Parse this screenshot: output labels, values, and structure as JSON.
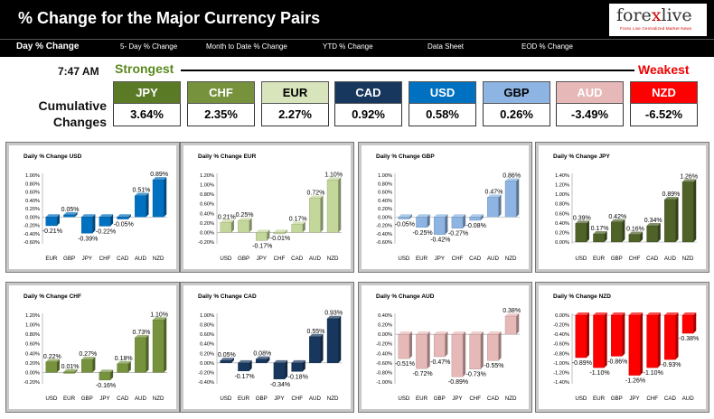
{
  "header": {
    "title": "% Change for the Major Currency Pairs",
    "logo": {
      "text_a": "fore",
      "text_x": "x",
      "text_b": "live",
      "tagline": "Forex Live Centralized Market News"
    }
  },
  "tabs": [
    {
      "label": "Day % Change",
      "active": true
    },
    {
      "label": "5- Day % Change",
      "active": false
    },
    {
      "label": "Month to Date % Change",
      "active": false
    },
    {
      "label": "YTD % Change",
      "active": false
    },
    {
      "label": "Data Sheet",
      "active": false
    },
    {
      "label": "EOD % Change",
      "active": false
    }
  ],
  "time": "7:47 AM",
  "strongest_label": "Strongest",
  "weakest_label": "Weakest",
  "cumulative_label_1": "Cumulative",
  "cumulative_label_2": "Changes",
  "cumulative": [
    {
      "currency": "JPY",
      "value": "3.64%",
      "color": "#5b7a25",
      "text": "#ffffff"
    },
    {
      "currency": "CHF",
      "value": "2.35%",
      "color": "#76923c",
      "text": "#ffffff"
    },
    {
      "currency": "EUR",
      "value": "2.27%",
      "color": "#d8e4bc",
      "text": "#000000"
    },
    {
      "currency": "CAD",
      "value": "0.92%",
      "color": "#17375e",
      "text": "#ffffff"
    },
    {
      "currency": "USD",
      "value": "0.58%",
      "color": "#0070c0",
      "text": "#ffffff"
    },
    {
      "currency": "GBP",
      "value": "0.26%",
      "color": "#8db4e2",
      "text": "#000000"
    },
    {
      "currency": "AUD",
      "value": "-3.49%",
      "color": "#e6b8b7",
      "text": "#ffffff"
    },
    {
      "currency": "NZD",
      "value": "-6.52%",
      "color": "#ff0000",
      "text": "#ffffff"
    }
  ],
  "chart_data": [
    {
      "type": "bar",
      "title": "Daily % Change USD",
      "color": "#0070c0",
      "categories": [
        "EUR",
        "GBP",
        "JPY",
        "CHF",
        "CAD",
        "AUD",
        "NZD"
      ],
      "values": [
        -0.21,
        0.05,
        -0.39,
        -0.22,
        -0.05,
        0.51,
        0.89
      ],
      "labels": [
        "-0.21%",
        "0.05%",
        "-0.39%",
        "-0.22%",
        "-0.05%",
        "0.51%",
        "0.89%"
      ],
      "yticks": [
        1.0,
        0.8,
        0.6,
        0.4,
        0.2,
        0.0,
        -0.2,
        -0.4,
        -0.6
      ],
      "yticklabels": [
        "1.00%",
        "0.80%",
        "0.60%",
        "0.40%",
        "0.20%",
        "0.00%",
        "-0.20%",
        "-0.40%",
        "-0.60%"
      ],
      "ylim": [
        -0.6,
        1.0
      ]
    },
    {
      "type": "bar",
      "title": "Daily % Change EUR",
      "color": "#c4d79b",
      "categories": [
        "USD",
        "GBP",
        "JPY",
        "CHF",
        "CAD",
        "AUD",
        "NZD"
      ],
      "values": [
        0.21,
        0.25,
        -0.17,
        -0.01,
        0.17,
        0.72,
        1.1
      ],
      "labels": [
        "0.21%",
        "0.25%",
        "-0.17%",
        "-0.01%",
        "0.17%",
        "0.72%",
        "1.10%"
      ],
      "yticks": [
        1.2,
        1.0,
        0.8,
        0.6,
        0.4,
        0.2,
        0.0,
        -0.2
      ],
      "yticklabels": [
        "1.20%",
        "1.00%",
        "0.80%",
        "0.60%",
        "0.40%",
        "0.20%",
        "0.00%",
        "-0.20%"
      ],
      "ylim": [
        -0.2,
        1.2
      ]
    },
    {
      "type": "bar",
      "title": "Daily % Change GBP",
      "color": "#8db4e2",
      "categories": [
        "USD",
        "EUR",
        "JPY",
        "CHF",
        "CAD",
        "AUD",
        "NZD"
      ],
      "values": [
        -0.05,
        -0.25,
        -0.42,
        -0.27,
        -0.08,
        0.47,
        0.86
      ],
      "labels": [
        "-0.05%",
        "-0.25%",
        "-0.42%",
        "-0.27%",
        "-0.08%",
        "0.47%",
        "0.86%"
      ],
      "yticks": [
        1.0,
        0.8,
        0.6,
        0.4,
        0.2,
        0.0,
        -0.2,
        -0.4,
        -0.6
      ],
      "yticklabels": [
        "1.00%",
        "0.80%",
        "0.60%",
        "0.40%",
        "0.20%",
        "0.00%",
        "-0.20%",
        "-0.40%",
        "-0.60%"
      ],
      "ylim": [
        -0.6,
        1.0
      ]
    },
    {
      "type": "bar",
      "title": "Daily % Change JPY",
      "color": "#4f6228",
      "categories": [
        "USD",
        "EUR",
        "GBP",
        "CHF",
        "CAD",
        "AUD",
        "NZD"
      ],
      "values": [
        0.39,
        0.17,
        0.42,
        0.16,
        0.34,
        0.89,
        1.26
      ],
      "labels": [
        "0.39%",
        "0.17%",
        "0.42%",
        "0.16%",
        "0.34%",
        "0.89%",
        "1.26%"
      ],
      "yticks": [
        1.4,
        1.2,
        1.0,
        0.8,
        0.6,
        0.4,
        0.2,
        0.0
      ],
      "yticklabels": [
        "1.40%",
        "1.20%",
        "1.00%",
        "0.80%",
        "0.60%",
        "0.40%",
        "0.20%",
        "0.00%"
      ],
      "ylim": [
        0.0,
        1.4
      ]
    },
    {
      "type": "bar",
      "title": "Daily % Change CHF",
      "color": "#76923c",
      "categories": [
        "USD",
        "EUR",
        "GBP",
        "JPY",
        "CAD",
        "AUD",
        "NZD"
      ],
      "values": [
        0.22,
        0.01,
        0.27,
        -0.16,
        0.18,
        0.73,
        1.1
      ],
      "labels": [
        "0.22%",
        "0.01%",
        "0.27%",
        "-0.16%",
        "0.18%",
        "0.73%",
        "1.10%"
      ],
      "yticks": [
        1.2,
        1.0,
        0.8,
        0.6,
        0.4,
        0.2,
        0.0,
        -0.2
      ],
      "yticklabels": [
        "1.20%",
        "1.00%",
        "0.80%",
        "0.60%",
        "0.40%",
        "0.20%",
        "0.00%",
        "-0.20%"
      ],
      "ylim": [
        -0.2,
        1.2
      ]
    },
    {
      "type": "bar",
      "title": "Daily % Change CAD",
      "color": "#17375e",
      "categories": [
        "USD",
        "EUR",
        "GBP",
        "JPY",
        "CHF",
        "AUD",
        "NZD"
      ],
      "values": [
        0.05,
        -0.17,
        0.08,
        -0.34,
        -0.18,
        0.55,
        0.93
      ],
      "labels": [
        "0.05%",
        "-0.17%",
        "0.08%",
        "-0.34%",
        "-0.18%",
        "0.55%",
        "0.93%"
      ],
      "yticks": [
        1.0,
        0.8,
        0.6,
        0.4,
        0.2,
        0.0,
        -0.2,
        -0.4
      ],
      "yticklabels": [
        "1.00%",
        "0.80%",
        "0.60%",
        "0.40%",
        "0.20%",
        "0.00%",
        "-0.20%",
        "-0.40%"
      ],
      "ylim": [
        -0.4,
        1.0
      ]
    },
    {
      "type": "bar",
      "title": "Daily % Change AUD",
      "color": "#e6b8b7",
      "categories": [
        "USD",
        "EUR",
        "GBP",
        "JPY",
        "CHF",
        "CAD",
        "NZD"
      ],
      "values": [
        -0.51,
        -0.72,
        -0.47,
        -0.89,
        -0.73,
        -0.55,
        0.38
      ],
      "labels": [
        "-0.51%",
        "-0.72%",
        "-0.47%",
        "-0.89%",
        "-0.73%",
        "-0.55%",
        "0.38%"
      ],
      "yticks": [
        0.4,
        0.2,
        0.0,
        -0.2,
        -0.4,
        -0.6,
        -0.8,
        -1.0
      ],
      "yticklabels": [
        "0.40%",
        "0.20%",
        "0.00%",
        "-0.20%",
        "-0.40%",
        "-0.60%",
        "-0.80%",
        "-1.00%"
      ],
      "ylim": [
        -1.0,
        0.4
      ]
    },
    {
      "type": "bar",
      "title": "Daily % Change NZD",
      "color": "#ff0000",
      "categories": [
        "USD",
        "EUR",
        "GBP",
        "JPY",
        "CHF",
        "CAD",
        "AUD"
      ],
      "values": [
        -0.89,
        -1.1,
        -0.86,
        -1.26,
        -1.1,
        -0.93,
        -0.38
      ],
      "labels": [
        "-0.89%",
        "-1.10%",
        "-0.86%",
        "-1.26%",
        "-1.10%",
        "-0.93%",
        "-0.38%"
      ],
      "yticks": [
        0.0,
        -0.2,
        -0.4,
        -0.6,
        -0.8,
        -1.0,
        -1.2,
        -1.4
      ],
      "yticklabels": [
        "0.00%",
        "-0.20%",
        "-0.40%",
        "-0.60%",
        "-0.80%",
        "-1.00%",
        "-1.20%",
        "-1.40%"
      ],
      "ylim": [
        -1.4,
        0.0
      ]
    }
  ]
}
